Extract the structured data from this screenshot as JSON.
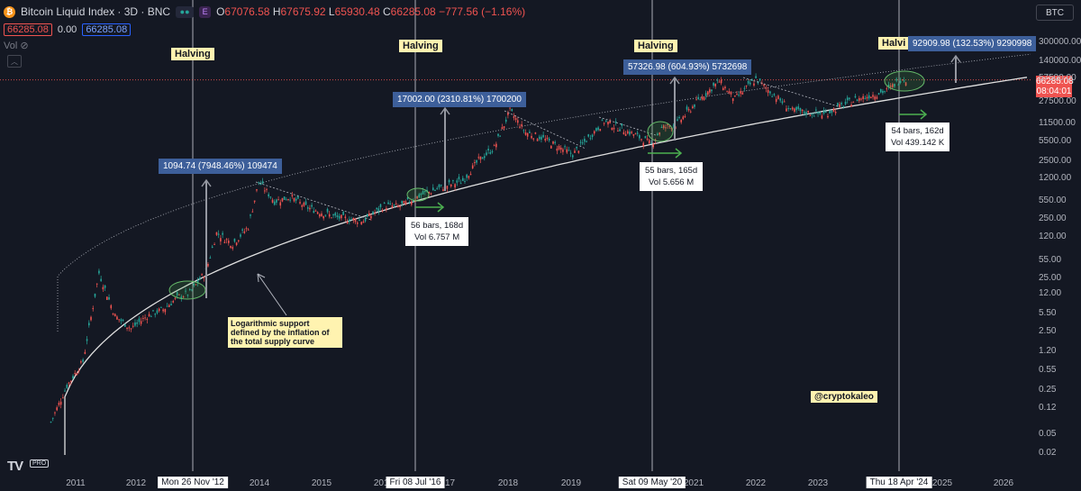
{
  "header": {
    "coin_glyph": "₿",
    "title": "Bitcoin Liquid Index · 3D · BNC",
    "e_label": "E",
    "ohlc": {
      "o_label": "O",
      "o": "67076.58",
      "h_label": "H",
      "h": "67675.92",
      "l_label": "L",
      "l": "65930.48",
      "c_label": "C",
      "c": "66285.08",
      "change": "−777.56 (−1.16%)"
    },
    "bid": "66285.08",
    "spread": "0.00",
    "ask": "66285.08",
    "vol_label": "Vol"
  },
  "currency_selector": "BTC",
  "last_price": {
    "price": "66285.08",
    "countdown": "08:04:01"
  },
  "y_ticks": [
    "300000.00",
    "140000.00",
    "57500.00",
    "27500.00",
    "11500.00",
    "5500.00",
    "2500.00",
    "1200.00",
    "550.00",
    "250.00",
    "120.00",
    "55.00",
    "25.00",
    "12.00",
    "5.50",
    "2.50",
    "1.20",
    "0.55",
    "0.25",
    "0.12",
    "0.05",
    "0.02"
  ],
  "x_ticks": [
    "2011",
    "2012",
    "2014",
    "2015",
    "2016",
    "2017",
    "2018",
    "2019",
    "2020",
    "2021",
    "2022",
    "2023",
    "2025",
    "2026"
  ],
  "halving_dates": [
    "Mon 26 Nov '12",
    "Fri 08 Jul '16",
    "Sat 09 May '20",
    "Thu 18 Apr '24"
  ],
  "halving_label": "Halving",
  "halving_label_cut": "Halvi",
  "measures": [
    "1094.74 (7948.46%) 109474",
    "17002.00 (2310.81%) 1700200",
    "57326.98 (604.93%) 5732698",
    "92909.98 (132.53%) 9290998"
  ],
  "stats": [
    {
      "bars": "56 bars, 168d",
      "vol": "Vol 6.757 M"
    },
    {
      "bars": "55 bars, 165d",
      "vol": "Vol 5.656 M"
    },
    {
      "bars": "54 bars, 162d",
      "vol": "Vol 439.142 K"
    }
  ],
  "note": "Logarithmic support defined by the inflation of the total supply curve",
  "handle": "@cryptokaleo",
  "logo": "TV",
  "logo_badge": "PRO",
  "colors": {
    "up": "#26a69a",
    "down": "#ef5350",
    "background": "#141823",
    "measure": "#3d5f9a",
    "highlight": "#fff3b0"
  },
  "chart_data": {
    "type": "candlestick",
    "title": "Bitcoin Liquid Index · 3D · BNC",
    "y_scale": "log",
    "grid": false,
    "series": [
      {
        "name": "BTC",
        "points": [
          [
            "2010-09",
            0.07
          ],
          [
            "2010-12",
            0.3
          ],
          [
            "2011-03",
            0.8
          ],
          [
            "2011-06",
            28
          ],
          [
            "2011-09",
            5
          ],
          [
            "2011-12",
            3
          ],
          [
            "2012-03",
            5
          ],
          [
            "2012-06",
            6.5
          ],
          [
            "2012-09",
            11
          ],
          [
            "2012-11",
            12.5
          ],
          [
            "2013-02",
            30
          ],
          [
            "2013-04",
            140
          ],
          [
            "2013-07",
            90
          ],
          [
            "2013-10",
            180
          ],
          [
            "2013-12",
            1100
          ],
          [
            "2014-03",
            500
          ],
          [
            "2014-06",
            600
          ],
          [
            "2014-09",
            400
          ],
          [
            "2014-12",
            320
          ],
          [
            "2015-03",
            260
          ],
          [
            "2015-08",
            230
          ],
          [
            "2015-12",
            420
          ],
          [
            "2016-03",
            410
          ],
          [
            "2016-07",
            650
          ],
          [
            "2016-12",
            950
          ],
          [
            "2017-03",
            1150
          ],
          [
            "2017-06",
            2600
          ],
          [
            "2017-09",
            4300
          ],
          [
            "2017-12",
            19000
          ],
          [
            "2018-03",
            8000
          ],
          [
            "2018-06",
            6500
          ],
          [
            "2018-12",
            3300
          ],
          [
            "2019-06",
            12500
          ],
          [
            "2019-12",
            7200
          ],
          [
            "2020-03",
            5000
          ],
          [
            "2020-05",
            9500
          ],
          [
            "2020-08",
            11500
          ],
          [
            "2020-12",
            29000
          ],
          [
            "2021-04",
            63000
          ],
          [
            "2021-07",
            31000
          ],
          [
            "2021-11",
            68000
          ],
          [
            "2022-06",
            19000
          ],
          [
            "2022-12",
            16500
          ],
          [
            "2023-06",
            30000
          ],
          [
            "2023-12",
            43000
          ],
          [
            "2024-03",
            72000
          ],
          [
            "2024-04",
            66285
          ]
        ]
      }
    ],
    "halvings": [
      "2012-11-26",
      "2016-07-08",
      "2020-05-09",
      "2024-04-18"
    ]
  }
}
